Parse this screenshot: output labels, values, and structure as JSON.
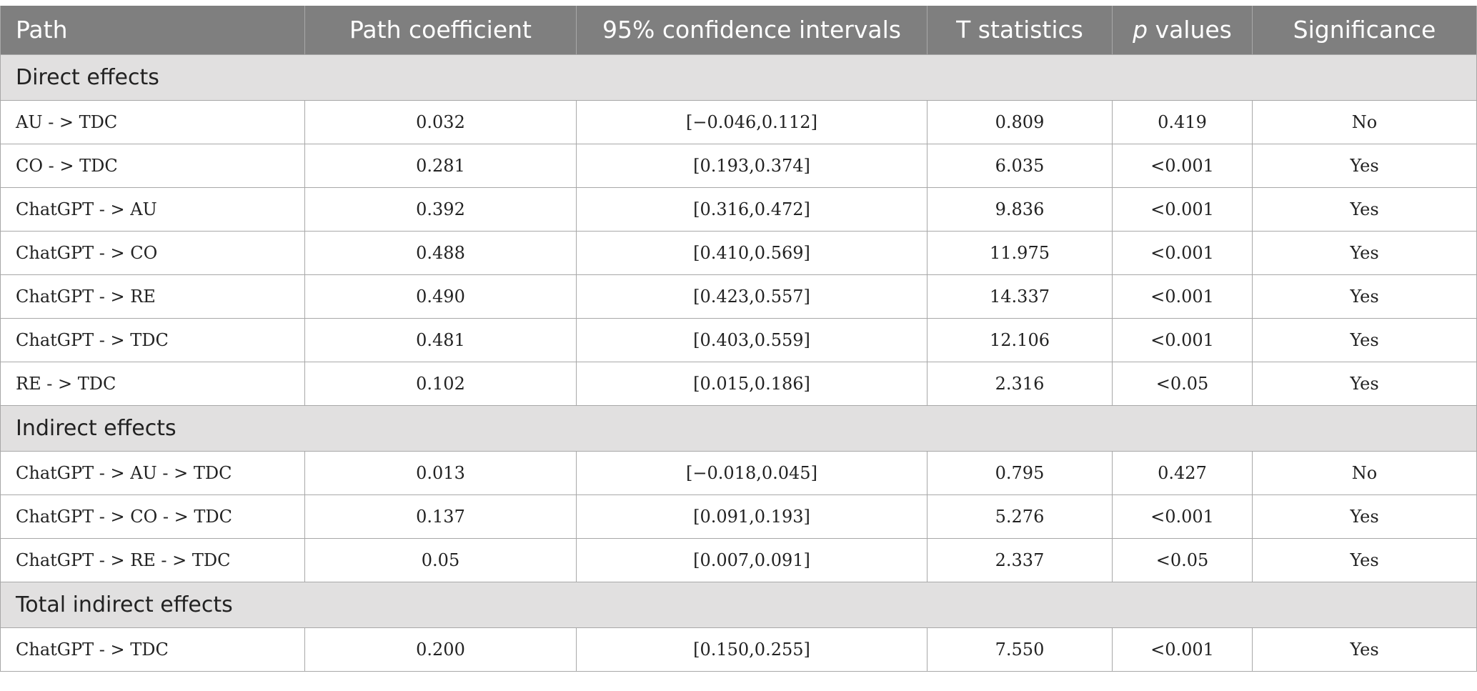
{
  "headers": [
    "Path",
    "Path coefficient",
    "95% confidence intervals",
    "T statistics",
    "values",
    "Significance"
  ],
  "header_p_italic": "p",
  "sections": [
    {
      "title": "Direct effects",
      "rows": [
        [
          "AU - > TDC",
          "0.032",
          "[−0.046,0.112]",
          "0.809",
          "0.419",
          "No"
        ],
        [
          "CO - > TDC",
          "0.281",
          "[0.193,0.374]",
          "6.035",
          "<0.001",
          "Yes"
        ],
        [
          "ChatGPT - > AU",
          "0.392",
          "[0.316,0.472]",
          "9.836",
          "<0.001",
          "Yes"
        ],
        [
          "ChatGPT - > CO",
          "0.488",
          "[0.410,0.569]",
          "11.975",
          "<0.001",
          "Yes"
        ],
        [
          "ChatGPT - > RE",
          "0.490",
          "[0.423,0.557]",
          "14.337",
          "<0.001",
          "Yes"
        ],
        [
          "ChatGPT - > TDC",
          "0.481",
          "[0.403,0.559]",
          "12.106",
          "<0.001",
          "Yes"
        ],
        [
          "RE - > TDC",
          "0.102",
          "[0.015,0.186]",
          "2.316",
          "<0.05",
          "Yes"
        ]
      ]
    },
    {
      "title": "Indirect effects",
      "rows": [
        [
          "ChatGPT - > AU - > TDC",
          "0.013",
          "[−0.018,0.045]",
          "0.795",
          "0.427",
          "No"
        ],
        [
          "ChatGPT - > CO - > TDC",
          "0.137",
          "[0.091,0.193]",
          "5.276",
          "<0.001",
          "Yes"
        ],
        [
          "ChatGPT - > RE - > TDC",
          "0.05",
          "[0.007,0.091]",
          "2.337",
          "<0.05",
          "Yes"
        ]
      ]
    },
    {
      "title": "Total indirect effects",
      "rows": [
        [
          "ChatGPT - > TDC",
          "0.200",
          "[0.150,0.255]",
          "7.550",
          "<0.001",
          "Yes"
        ]
      ]
    }
  ],
  "colors": {
    "header_bg": "#7f7f7f",
    "section_bg": "#e1e0e0",
    "border": "#a8a8a8"
  }
}
